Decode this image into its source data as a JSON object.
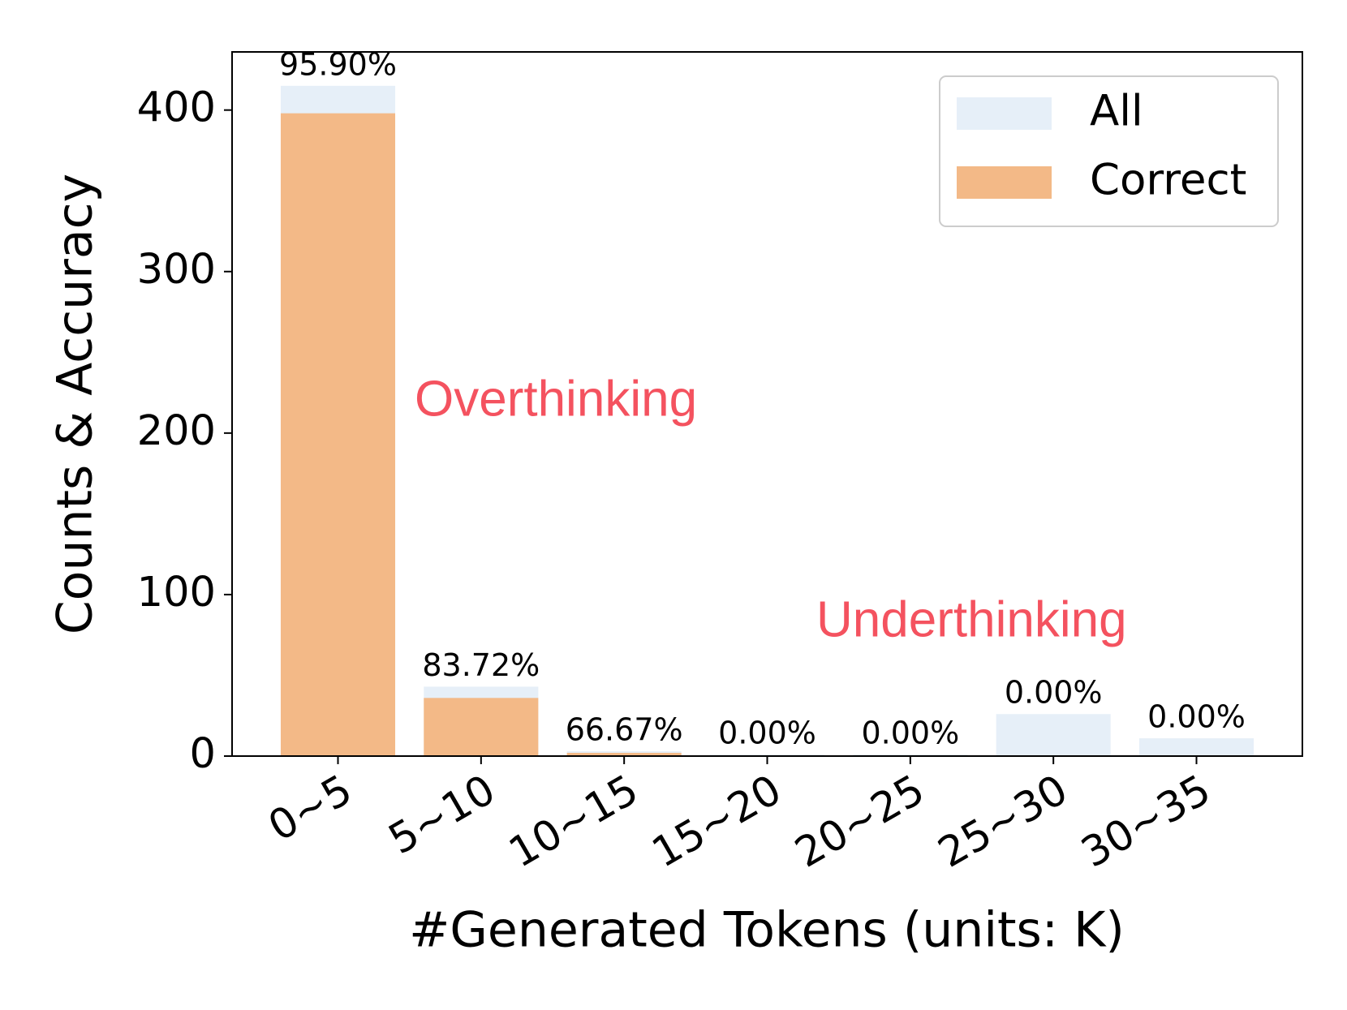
{
  "chart_data": {
    "type": "bar",
    "x_label": "#Generated Tokens (units: K)",
    "y_label": "Counts & Accuracy",
    "categories": [
      "0~5",
      "5~10",
      "10~15",
      "15~20",
      "20~25",
      "25~30",
      "30~35"
    ],
    "series": [
      {
        "name": "All",
        "color": "#e6eff8",
        "values": [
          415,
          43,
          3,
          1,
          1,
          26,
          11
        ]
      },
      {
        "name": "Correct",
        "color": "#f3b987",
        "values": [
          398,
          36,
          2,
          0,
          0,
          0,
          0
        ]
      }
    ],
    "accuracy": {
      "values": [
        95.9,
        83.72,
        66.67,
        0,
        0,
        0,
        0
      ],
      "value_labels": [
        "95.90%",
        "83.72%",
        "66.67%",
        "0.00%",
        "0.00%",
        "0.00%",
        "0.00%"
      ]
    },
    "annotations": [
      {
        "text": "Overthinking",
        "color": "#f4525f"
      },
      {
        "text": "Underthinking",
        "color": "#f4525f"
      }
    ],
    "ylim": [
      0,
      436
    ],
    "yticks": [
      0,
      100,
      200,
      300,
      400
    ],
    "grid": false,
    "legend": "upper right"
  }
}
